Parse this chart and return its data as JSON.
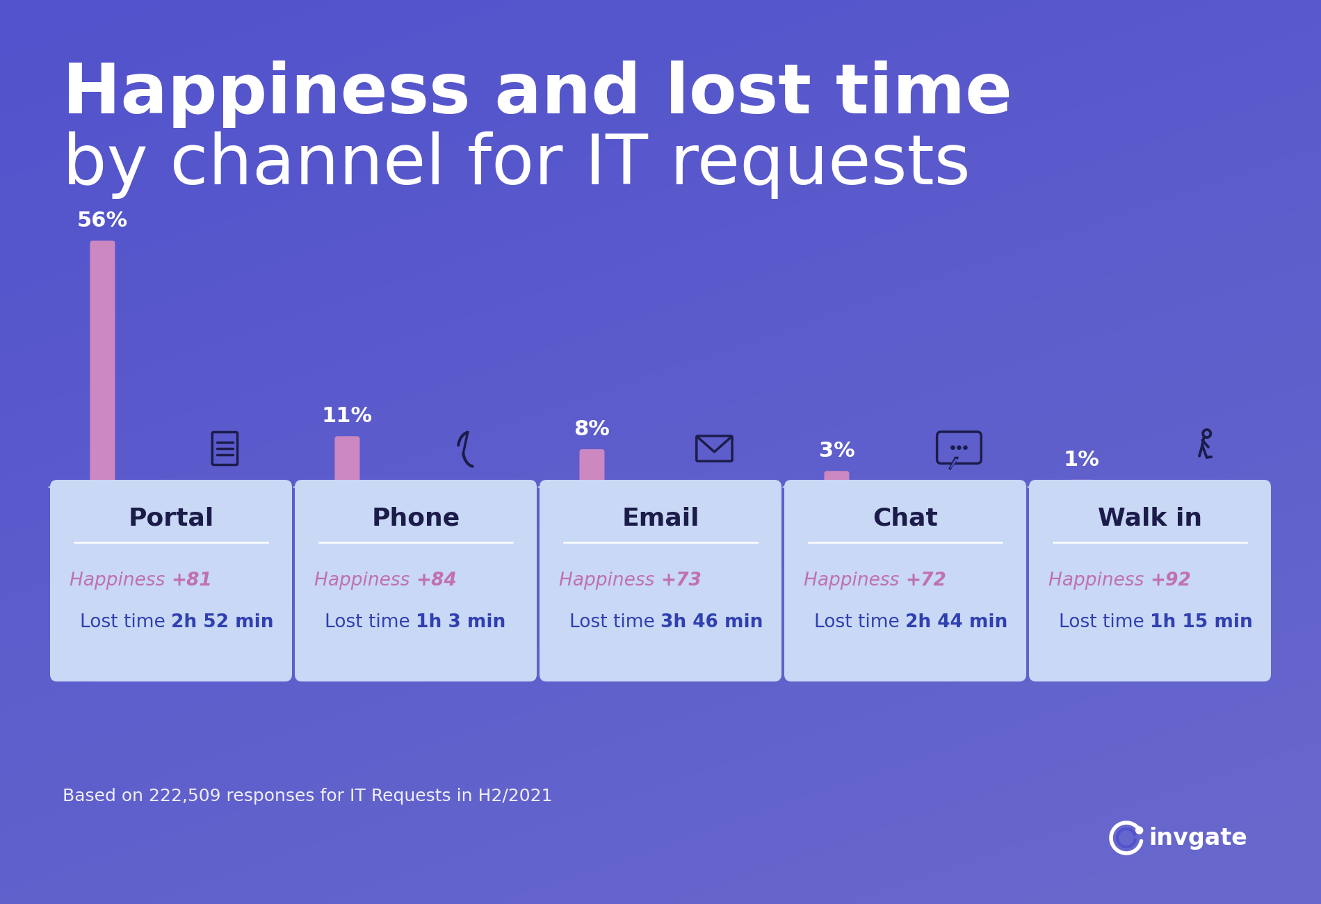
{
  "title_bold": "Happiness and lost time",
  "title_normal": "by channel for IT requests",
  "bg_color": "#5252CC",
  "card_color": "#C8D8F5",
  "bar_color": "#CC88C0",
  "channels": [
    "Portal",
    "Phone",
    "Email",
    "Chat",
    "Walk in"
  ],
  "percentages": [
    56,
    11,
    8,
    3,
    1
  ],
  "happiness_vals": [
    "+81",
    "+84",
    "+73",
    "+72",
    "+92"
  ],
  "lost_times": [
    "2h 52 min",
    "1h 3 min",
    "3h 46 min",
    "2h 44 min",
    "1h 15 min"
  ],
  "dark_navy": "#1C1C4A",
  "pink": "#C070B0",
  "blue_text": "#3040B0",
  "white": "#FFFFFF",
  "footnote": "Based on 222,509 responses for IT Requests in H2/2021",
  "invgate_text": "invgate"
}
